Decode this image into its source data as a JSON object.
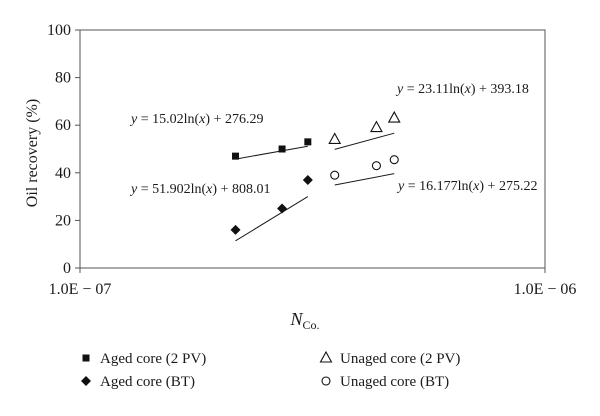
{
  "chart_data": {
    "type": "scatter",
    "x_scale": "log",
    "xlim": [
      1e-07,
      1e-06
    ],
    "ylim": [
      0,
      100
    ],
    "xticks": [
      {
        "value": 1e-07,
        "label": "1.0E − 07"
      },
      {
        "value": 1e-06,
        "label": "1.0E − 06"
      }
    ],
    "yticks": [
      0,
      20,
      40,
      60,
      80,
      100
    ],
    "xlabel_main": "N",
    "xlabel_sub": "Co.",
    "ylabel": "Oil recovery (%)",
    "grid": false,
    "legend_position": "bottom",
    "series": [
      {
        "name": "Aged core (2 PV)",
        "marker": "square-filled",
        "x": [
          2.16e-07,
          2.72e-07,
          3.09e-07
        ],
        "y": [
          47,
          50,
          53
        ],
        "trendline": {
          "equation": "y = 15.02ln(x) + 276.29",
          "a": 15.02,
          "b": 276.29,
          "x_range": [
            2.16e-07,
            3.09e-07
          ]
        }
      },
      {
        "name": "Aged core (BT)",
        "marker": "diamond-filled",
        "x": [
          2.16e-07,
          2.72e-07,
          3.09e-07
        ],
        "y": [
          16,
          25,
          37
        ],
        "trendline": {
          "equation": "y = 51.902ln(x) + 808.01",
          "a": 51.902,
          "b": 808.01,
          "x_range": [
            2.16e-07,
            3.09e-07
          ]
        }
      },
      {
        "name": "Unaged core (2 PV)",
        "marker": "triangle-open",
        "x": [
          3.53e-07,
          4.34e-07,
          4.74e-07
        ],
        "y": [
          54,
          59,
          63
        ],
        "trendline": {
          "equation": "y = 23.11ln(x) + 393.18",
          "a": 23.11,
          "b": 393.18,
          "x_range": [
            3.53e-07,
            4.74e-07
          ]
        }
      },
      {
        "name": "Unaged core (BT)",
        "marker": "circle-open",
        "x": [
          3.53e-07,
          4.34e-07,
          4.74e-07
        ],
        "y": [
          39,
          43,
          45.5
        ],
        "trendline": {
          "equation": "y = 16.177ln(x) + 275.22",
          "a": 16.177,
          "b": 275.22,
          "x_range": [
            3.53e-07,
            4.74e-07
          ]
        }
      }
    ]
  }
}
